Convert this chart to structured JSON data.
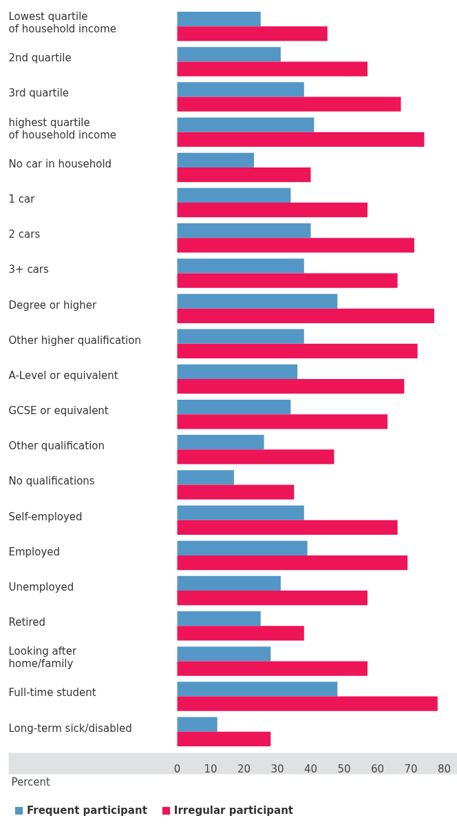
{
  "chart_data": {
    "type": "bar",
    "orientation": "horizontal",
    "xlabel": "Percent",
    "categories": [
      "Lowest quartile\nof household income",
      "2nd quartile",
      "3rd quartile",
      "highest quartile\nof household income",
      "No car in household",
      "1 car",
      "2 cars",
      "3+ cars",
      "Degree or higher",
      "Other higher qualification",
      "A-Level or equivalent",
      "GCSE or equivalent",
      "Other qualification",
      "No qualifications",
      "Self-employed",
      "Employed",
      "Unemployed",
      "Retired",
      "Looking after\nhome/family",
      "Full-time student",
      "Long-term sick/disabled"
    ],
    "series": [
      {
        "name": "Frequent participant",
        "color": "#5497c7",
        "values": [
          25,
          31,
          38,
          41,
          23,
          34,
          40,
          38,
          48,
          38,
          36,
          34,
          26,
          17,
          38,
          39,
          31,
          25,
          28,
          48,
          12
        ]
      },
      {
        "name": "Irregular participant",
        "color": "#ed1457",
        "values": [
          45,
          57,
          67,
          74,
          40,
          57,
          71,
          66,
          77,
          72,
          68,
          63,
          47,
          35,
          66,
          69,
          57,
          38,
          57,
          78,
          28
        ]
      }
    ],
    "xlim": [
      0,
      80
    ],
    "xticks": [
      0,
      10,
      20,
      30,
      40,
      50,
      60,
      70,
      80
    ],
    "grid": false,
    "legend": "bottom left"
  }
}
